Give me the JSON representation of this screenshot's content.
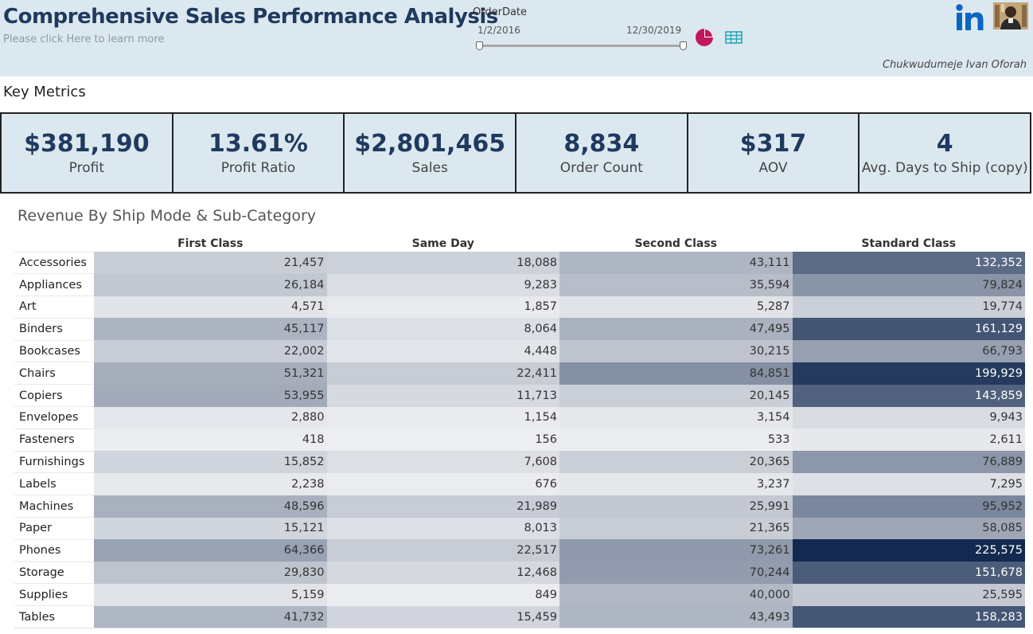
{
  "header": {
    "title": "Comprehensive Sales Performance Analysis",
    "subtitle": "Please click Here to learn more",
    "author": "Chukwudumeje Ivan Oforah"
  },
  "filter": {
    "label": "OrderDate",
    "start": "1/2/2016",
    "end": "12/30/2019"
  },
  "icons": {
    "pie": "pie-chart-icon",
    "table": "table-icon",
    "linkedin": "linkedin-icon",
    "avatar": "avatar"
  },
  "key_metrics": {
    "title": "Key Metrics",
    "items": [
      {
        "value": "$381,190",
        "label": "Profit"
      },
      {
        "value": "13.61%",
        "label": "Profit Ratio"
      },
      {
        "value": "$2,801,465",
        "label": "Sales"
      },
      {
        "value": "8,834",
        "label": "Order Count"
      },
      {
        "value": "$317",
        "label": "AOV"
      },
      {
        "value": "4",
        "label": "Avg. Days to Ship (copy)"
      }
    ]
  },
  "colors": {
    "brand": "#1f3a5f",
    "header_bg": "#dce8ef",
    "pie": "#c2185b",
    "table_icon": "#26a7b8",
    "linkedin": "#0a66c2",
    "heat_low": "#eeeff2",
    "heat_high": "#13294f"
  },
  "chart_data": {
    "type": "table",
    "title": "Revenue By Ship Mode & Sub-Category",
    "columns": [
      "First Class",
      "Same Day",
      "Second Class",
      "Standard Class"
    ],
    "rows": [
      {
        "category": "Accessories",
        "values": [
          21457,
          18088,
          43111,
          132352
        ]
      },
      {
        "category": "Appliances",
        "values": [
          26184,
          9283,
          35594,
          79824
        ]
      },
      {
        "category": "Art",
        "values": [
          4571,
          1857,
          5287,
          19774
        ]
      },
      {
        "category": "Binders",
        "values": [
          45117,
          8064,
          47495,
          161129
        ]
      },
      {
        "category": "Bookcases",
        "values": [
          22002,
          4448,
          30215,
          66793
        ]
      },
      {
        "category": "Chairs",
        "values": [
          51321,
          22411,
          84851,
          199929
        ]
      },
      {
        "category": "Copiers",
        "values": [
          53955,
          11713,
          20145,
          143859
        ]
      },
      {
        "category": "Envelopes",
        "values": [
          2880,
          1154,
          3154,
          9943
        ]
      },
      {
        "category": "Fasteners",
        "values": [
          418,
          156,
          533,
          2611
        ]
      },
      {
        "category": "Furnishings",
        "values": [
          15852,
          7608,
          20365,
          76889
        ]
      },
      {
        "category": "Labels",
        "values": [
          2238,
          676,
          3237,
          7295
        ]
      },
      {
        "category": "Machines",
        "values": [
          48596,
          21989,
          25991,
          95952
        ]
      },
      {
        "category": "Paper",
        "values": [
          15121,
          8013,
          21365,
          58085
        ]
      },
      {
        "category": "Phones",
        "values": [
          64366,
          22517,
          73261,
          225575
        ]
      },
      {
        "category": "Storage",
        "values": [
          29830,
          12468,
          70244,
          151678
        ]
      },
      {
        "category": "Supplies",
        "values": [
          5159,
          849,
          40000,
          25595
        ]
      },
      {
        "category": "Tables",
        "values": [
          41732,
          15459,
          43493,
          158283
        ]
      }
    ]
  }
}
